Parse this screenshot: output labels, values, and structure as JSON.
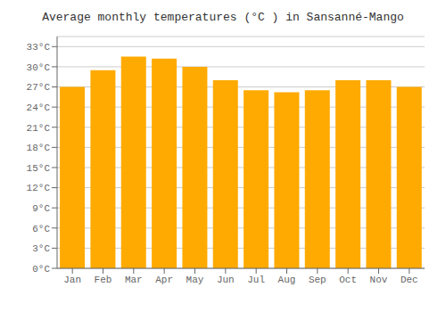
{
  "chart_data": {
    "type": "bar",
    "title": "Average monthly temperatures (°C ) in Sansanné-Mango",
    "categories": [
      "Jan",
      "Feb",
      "Mar",
      "Apr",
      "May",
      "Jun",
      "Jul",
      "Aug",
      "Sep",
      "Oct",
      "Nov",
      "Dec"
    ],
    "values": [
      27,
      29.5,
      31.5,
      31.2,
      30,
      28,
      26.5,
      26.2,
      26.5,
      28,
      28,
      27
    ],
    "color": "#FFAA00",
    "ylim": [
      0,
      34.5
    ],
    "yticks": [
      {
        "value": 0,
        "label": "0°C"
      },
      {
        "value": 3,
        "label": "3°C"
      },
      {
        "value": 6,
        "label": "6°C"
      },
      {
        "value": 9,
        "label": "9°C"
      },
      {
        "value": 12,
        "label": "12°C"
      },
      {
        "value": 15,
        "label": "15°C"
      },
      {
        "value": 18,
        "label": "18°C"
      },
      {
        "value": 21,
        "label": "21°C"
      },
      {
        "value": 24,
        "label": "24°C"
      },
      {
        "value": 27,
        "label": "27°C"
      },
      {
        "value": 30,
        "label": "30°C"
      },
      {
        "value": 33,
        "label": "33°C"
      }
    ],
    "grid": true
  }
}
